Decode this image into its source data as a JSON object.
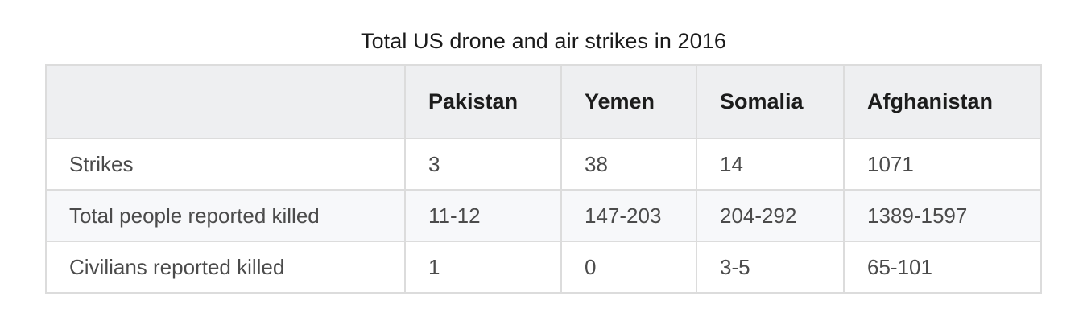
{
  "title": "Total US drone and air strikes in 2016",
  "table": {
    "headers": [
      "",
      "Pakistan",
      "Yemen",
      "Somalia",
      "Afghanistan"
    ],
    "rows": [
      [
        "Strikes",
        "3",
        "38",
        "14",
        "1071"
      ],
      [
        "Total people reported killed",
        "11-12",
        "147-203",
        "204-292",
        "1389-1597"
      ],
      [
        "Civilians reported killed",
        "1",
        "0",
        "3-5",
        "65-101"
      ]
    ]
  }
}
